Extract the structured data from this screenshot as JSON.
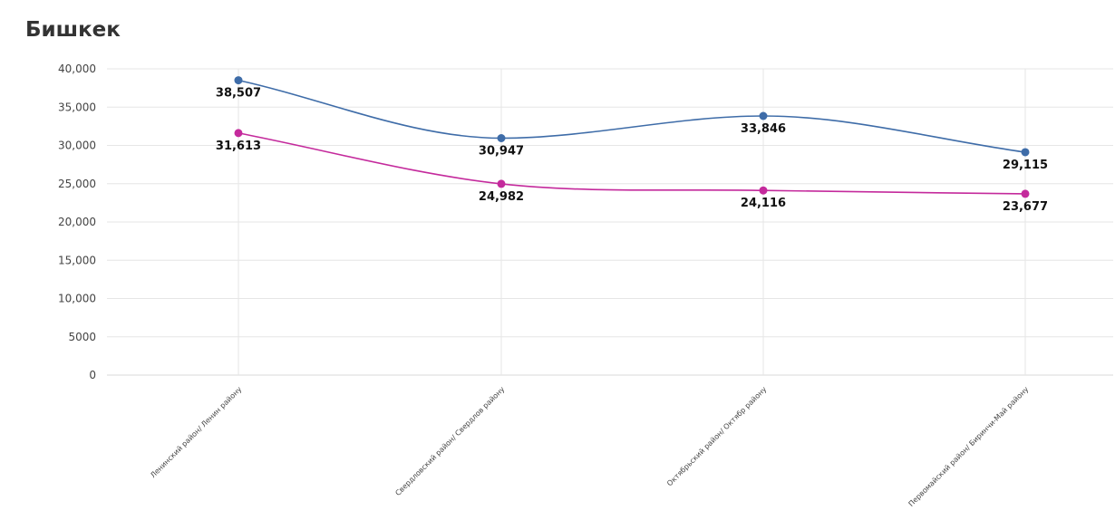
{
  "title": "Бишкек",
  "chart_data": {
    "type": "line",
    "title": "Бишкек",
    "xlabel": "",
    "ylabel": "",
    "ylim": [
      0,
      40000
    ],
    "yticks": [
      0,
      5000,
      10000,
      15000,
      20000,
      25000,
      30000,
      35000,
      40000
    ],
    "ytick_labels": [
      "0",
      "5000",
      "10,000",
      "15,000",
      "20,000",
      "25,000",
      "30,000",
      "35,000",
      "40,000"
    ],
    "categories": [
      "Ленинский район/ Ленин району",
      "Свердловский район/ Свердлов району",
      "Октябрьский район/ Октябр району",
      "Первомайский район/ Биринчи-Май району"
    ],
    "grid": true,
    "legend": "none",
    "series": [
      {
        "color": "#3e6ca8",
        "values": [
          38507,
          30947,
          33846,
          29115
        ],
        "labels": [
          "38,507",
          "30,947",
          "33,846",
          "29,115"
        ]
      },
      {
        "color": "#c42a9c",
        "values": [
          31613,
          24982,
          24116,
          23677
        ],
        "labels": [
          "31,613",
          "24,982",
          "24,116",
          "23,677"
        ]
      }
    ]
  }
}
